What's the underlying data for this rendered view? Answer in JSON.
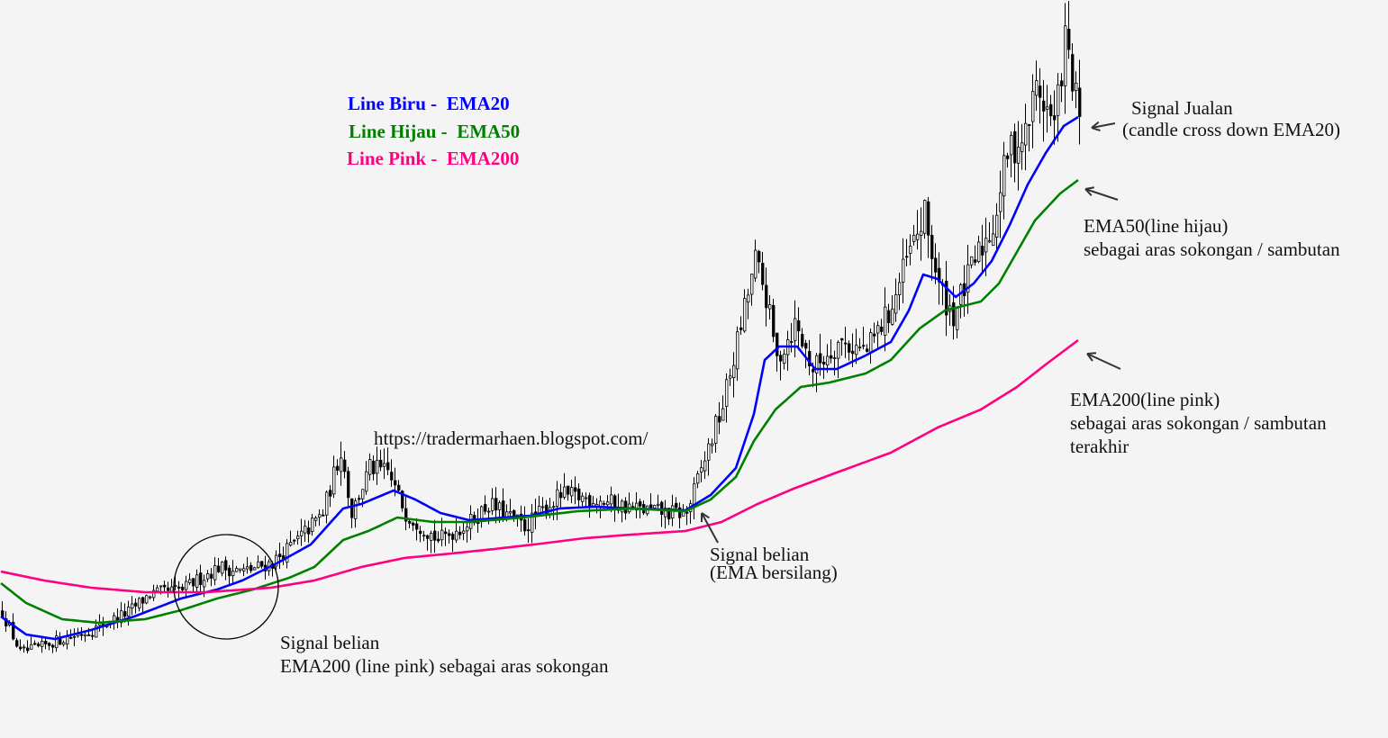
{
  "chart_data": {
    "type": "candlestick-line",
    "title": "",
    "xlabel": "",
    "ylabel": "",
    "price_units": "relative",
    "price_path": [
      [
        0,
        1.2
      ],
      [
        5,
        0.75
      ],
      [
        10,
        0.8
      ],
      [
        15,
        0.88
      ],
      [
        25,
        1.0
      ],
      [
        35,
        1.2
      ],
      [
        41,
        1.4
      ],
      [
        50,
        1.45
      ],
      [
        60,
        1.7
      ],
      [
        67,
        1.65
      ],
      [
        75,
        1.75
      ],
      [
        82,
        2.0
      ],
      [
        89,
        2.3
      ],
      [
        94,
        3.0
      ],
      [
        97,
        2.3
      ],
      [
        102,
        2.8
      ],
      [
        107,
        2.75
      ],
      [
        112,
        2.3
      ],
      [
        121,
        2.0
      ],
      [
        130,
        2.2
      ],
      [
        135,
        2.4
      ],
      [
        145,
        2.15
      ],
      [
        155,
        2.5
      ],
      [
        165,
        2.45
      ],
      [
        175,
        2.35
      ],
      [
        185,
        2.3
      ],
      [
        190,
        2.3
      ],
      [
        195,
        2.9
      ],
      [
        200,
        3.5
      ],
      [
        204,
        4.2
      ],
      [
        209,
        5.1
      ],
      [
        212,
        4.7
      ],
      [
        215,
        4.0
      ],
      [
        220,
        4.4
      ],
      [
        225,
        3.9
      ],
      [
        232,
        4.2
      ],
      [
        240,
        4.1
      ],
      [
        247,
        4.6
      ],
      [
        251,
        5.1
      ],
      [
        256,
        5.6
      ],
      [
        260,
        4.8
      ],
      [
        264,
        4.5
      ],
      [
        270,
        5.1
      ],
      [
        275,
        5.5
      ],
      [
        279,
        6.3
      ],
      [
        284,
        6.5
      ],
      [
        287,
        7.05
      ],
      [
        292,
        6.6
      ],
      [
        295,
        7.55
      ],
      [
        299,
        6.65
      ]
    ],
    "series": [
      {
        "name": "EMA20",
        "color": "#0000ff",
        "values": [
          [
            0,
            1.15
          ],
          [
            7,
            0.95
          ],
          [
            15,
            0.9
          ],
          [
            25,
            1.0
          ],
          [
            37,
            1.15
          ],
          [
            50,
            1.35
          ],
          [
            60,
            1.45
          ],
          [
            67,
            1.55
          ],
          [
            77,
            1.75
          ],
          [
            86,
            1.95
          ],
          [
            95,
            2.35
          ],
          [
            100,
            2.4
          ],
          [
            109,
            2.55
          ],
          [
            115,
            2.45
          ],
          [
            122,
            2.3
          ],
          [
            130,
            2.22
          ],
          [
            140,
            2.25
          ],
          [
            147,
            2.27
          ],
          [
            155,
            2.35
          ],
          [
            165,
            2.37
          ],
          [
            175,
            2.35
          ],
          [
            190,
            2.33
          ],
          [
            197,
            2.5
          ],
          [
            204,
            2.8
          ],
          [
            209,
            3.4
          ],
          [
            212,
            4.0
          ],
          [
            216,
            4.15
          ],
          [
            221,
            4.15
          ],
          [
            226,
            3.9
          ],
          [
            232,
            3.9
          ],
          [
            240,
            4.05
          ],
          [
            247,
            4.2
          ],
          [
            252,
            4.55
          ],
          [
            256,
            4.95
          ],
          [
            260,
            4.9
          ],
          [
            265,
            4.7
          ],
          [
            270,
            4.85
          ],
          [
            275,
            5.1
          ],
          [
            280,
            5.5
          ],
          [
            285,
            5.95
          ],
          [
            290,
            6.3
          ],
          [
            295,
            6.6
          ],
          [
            299,
            6.7
          ]
        ]
      },
      {
        "name": "EMA50",
        "color": "#008000",
        "values": [
          [
            0,
            1.52
          ],
          [
            7,
            1.3
          ],
          [
            17,
            1.12
          ],
          [
            27,
            1.08
          ],
          [
            40,
            1.12
          ],
          [
            50,
            1.22
          ],
          [
            60,
            1.35
          ],
          [
            70,
            1.45
          ],
          [
            80,
            1.58
          ],
          [
            87,
            1.7
          ],
          [
            95,
            2.0
          ],
          [
            102,
            2.1
          ],
          [
            110,
            2.25
          ],
          [
            120,
            2.2
          ],
          [
            130,
            2.2
          ],
          [
            145,
            2.25
          ],
          [
            160,
            2.32
          ],
          [
            175,
            2.35
          ],
          [
            190,
            2.32
          ],
          [
            197,
            2.45
          ],
          [
            204,
            2.7
          ],
          [
            209,
            3.1
          ],
          [
            215,
            3.45
          ],
          [
            222,
            3.7
          ],
          [
            230,
            3.75
          ],
          [
            240,
            3.85
          ],
          [
            247,
            4.0
          ],
          [
            255,
            4.35
          ],
          [
            262,
            4.55
          ],
          [
            272,
            4.65
          ],
          [
            277,
            4.85
          ],
          [
            282,
            5.2
          ],
          [
            287,
            5.55
          ],
          [
            294,
            5.85
          ],
          [
            299,
            6.0
          ]
        ]
      },
      {
        "name": "EMA200",
        "color": "#ff0080",
        "values": [
          [
            0,
            1.65
          ],
          [
            12,
            1.55
          ],
          [
            25,
            1.47
          ],
          [
            40,
            1.42
          ],
          [
            57,
            1.42
          ],
          [
            75,
            1.47
          ],
          [
            87,
            1.55
          ],
          [
            100,
            1.7
          ],
          [
            112,
            1.8
          ],
          [
            125,
            1.85
          ],
          [
            137,
            1.9
          ],
          [
            150,
            1.96
          ],
          [
            162,
            2.02
          ],
          [
            175,
            2.06
          ],
          [
            190,
            2.1
          ],
          [
            200,
            2.2
          ],
          [
            210,
            2.4
          ],
          [
            220,
            2.57
          ],
          [
            232,
            2.75
          ],
          [
            247,
            2.97
          ],
          [
            260,
            3.25
          ],
          [
            272,
            3.45
          ],
          [
            282,
            3.7
          ],
          [
            290,
            3.95
          ],
          [
            299,
            4.22
          ]
        ]
      }
    ],
    "legend": [
      {
        "label": "Line Biru -",
        "value": "EMA20",
        "color": "#0000ff"
      },
      {
        "label": "Line Hijau -",
        "value": "EMA50",
        "color": "#008000"
      },
      {
        "label": "Line Pink -",
        "value": "EMA200",
        "color": "#ff0080"
      }
    ],
    "annotations": {
      "url": "https://tradermarhaen.blogspot.com/",
      "sell_signal": [
        "Signal Jualan",
        "(candle cross down EMA20)"
      ],
      "ema50_note": [
        "EMA50(line hijau)",
        "sebagai aras sokongan / sambutan"
      ],
      "ema200_note": [
        "EMA200(line pink)",
        "sebagai aras sokongan / sambutan",
        "terakhir"
      ],
      "buy_signal_cross": [
        "Signal belian",
        "(EMA bersilang)"
      ],
      "buy_signal_support": [
        "Signal belian",
        "EMA200 (line pink) sebagai aras sokongan"
      ]
    },
    "grid": false
  }
}
